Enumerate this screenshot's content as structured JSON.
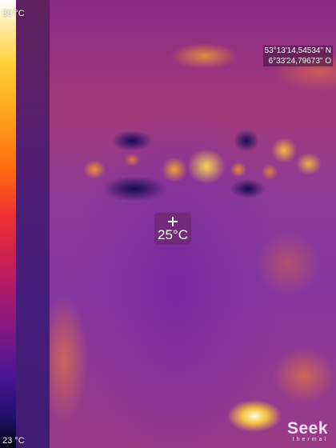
{
  "thermal_view": {
    "scale": {
      "max_label": "30 °C",
      "min_label": "23 °C"
    },
    "gps": {
      "lat": "53°13'14,54534\" N",
      "lon": "6°33'24,79673\" O"
    },
    "spot_reading": {
      "value": "25°C",
      "icon": "crosshair-icon"
    },
    "brand": {
      "name": "Seek",
      "tagline": "thermal"
    }
  }
}
